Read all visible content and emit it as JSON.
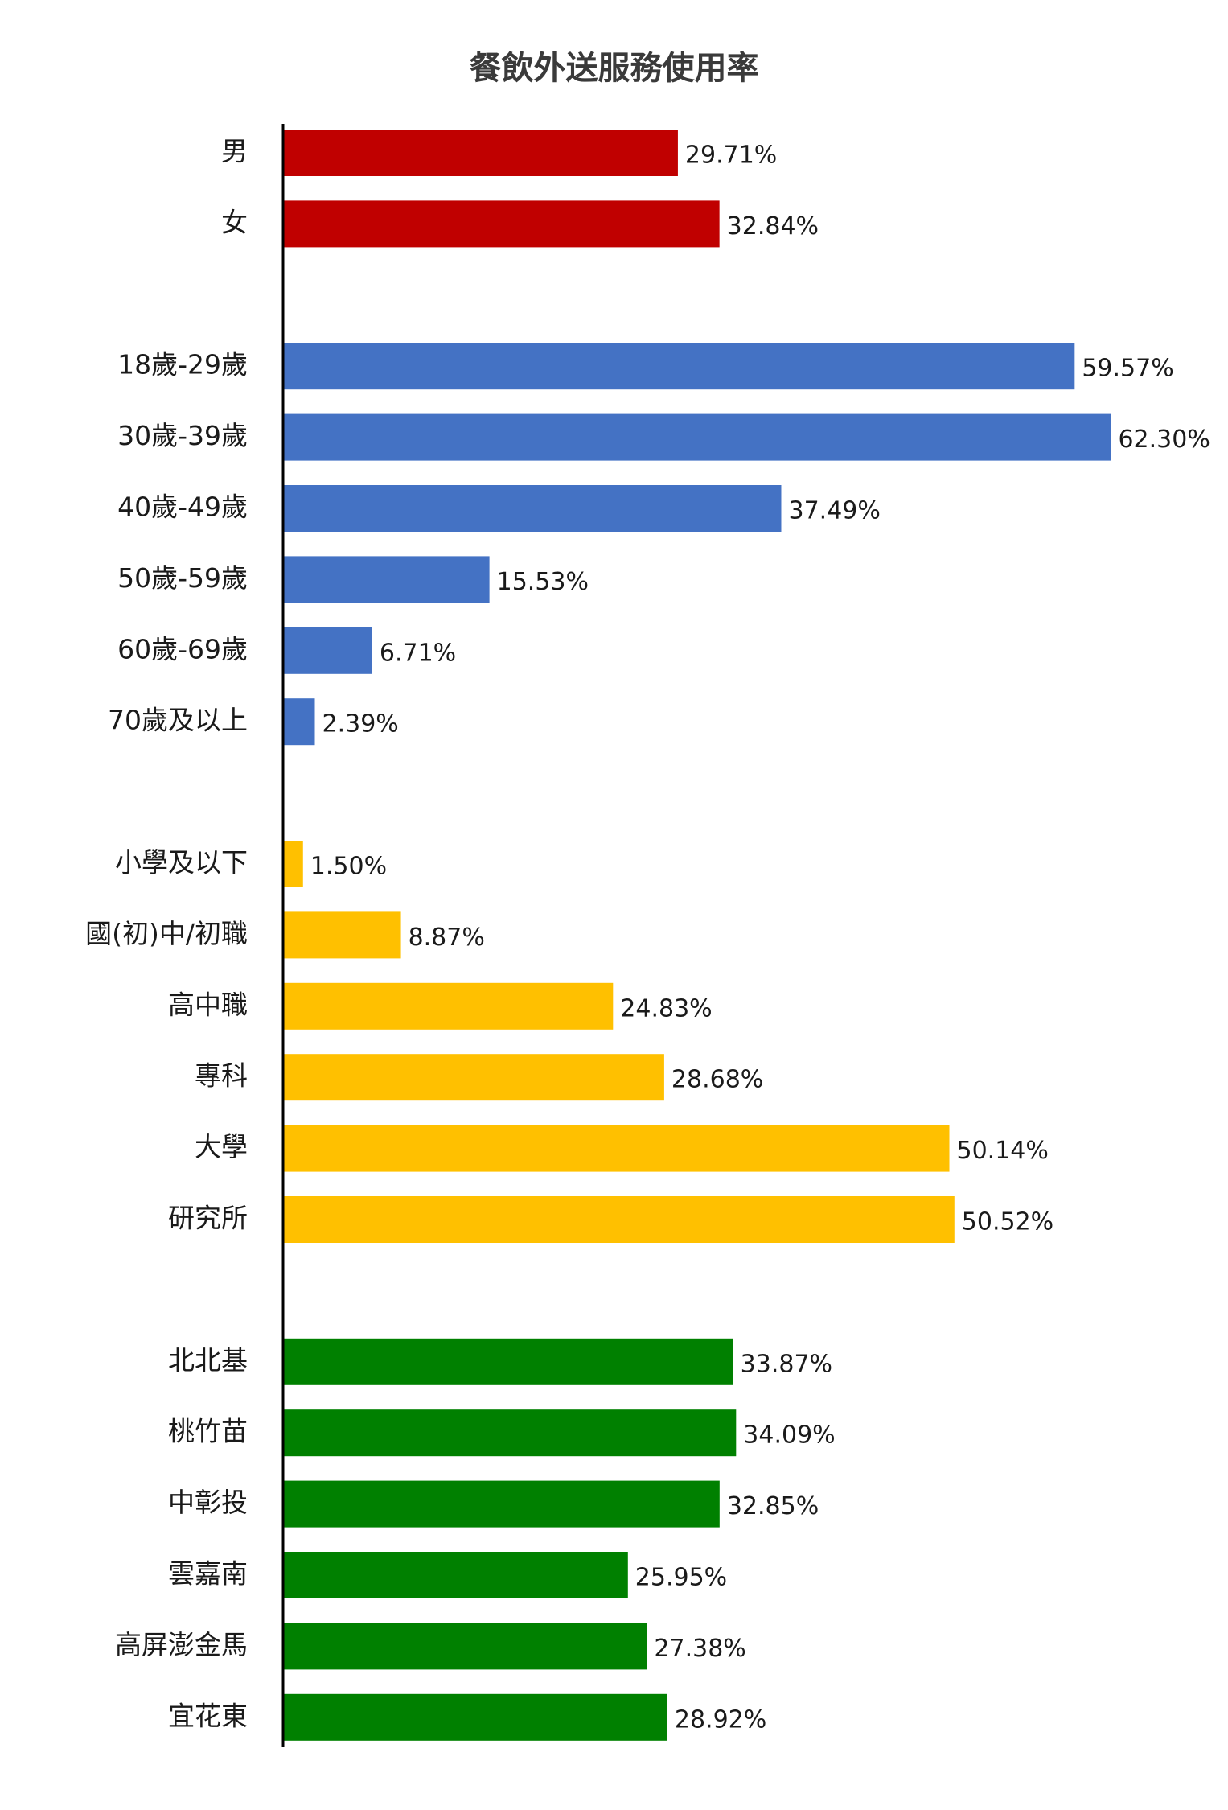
{
  "chart_data": {
    "type": "bar",
    "orientation": "horizontal",
    "title": "餐飲外送服務使用率",
    "xlabel": "",
    "ylabel": "",
    "xlim": [
      0,
      62.3
    ],
    "grid": false,
    "legend": "none",
    "value_suffix": "%",
    "groups": [
      {
        "color": "#c00000",
        "categories": [
          "男",
          "女"
        ],
        "values": [
          29.71,
          32.84
        ],
        "value_labels": [
          "29.71%",
          "32.84%"
        ]
      },
      {
        "color": "#4472c4",
        "categories": [
          "18歲-29歲",
          "30歲-39歲",
          "40歲-49歲",
          "50歲-59歲",
          "60歲-69歲",
          "70歲及以上"
        ],
        "values": [
          59.57,
          62.3,
          37.49,
          15.53,
          6.71,
          2.39
        ],
        "value_labels": [
          "59.57%",
          "62.30%",
          "37.49%",
          "15.53%",
          "6.71%",
          "2.39%"
        ]
      },
      {
        "color": "#ffc000",
        "categories": [
          "小學及以下",
          "國(初)中/初職",
          "高中職",
          "專科",
          "大學",
          "研究所"
        ],
        "values": [
          1.5,
          8.87,
          24.83,
          28.68,
          50.14,
          50.52
        ],
        "value_labels": [
          "1.50%",
          "8.87%",
          "24.83%",
          "28.68%",
          "50.14%",
          "50.52%"
        ]
      },
      {
        "color": "#008000",
        "categories": [
          "北北基",
          "桃竹苗",
          "中彰投",
          "雲嘉南",
          "高屏澎金馬",
          "宜花東"
        ],
        "values": [
          33.87,
          34.09,
          32.85,
          25.95,
          27.38,
          28.92
        ],
        "value_labels": [
          "33.87%",
          "34.09%",
          "32.85%",
          "25.95%",
          "27.38%",
          "28.92%"
        ]
      }
    ]
  }
}
